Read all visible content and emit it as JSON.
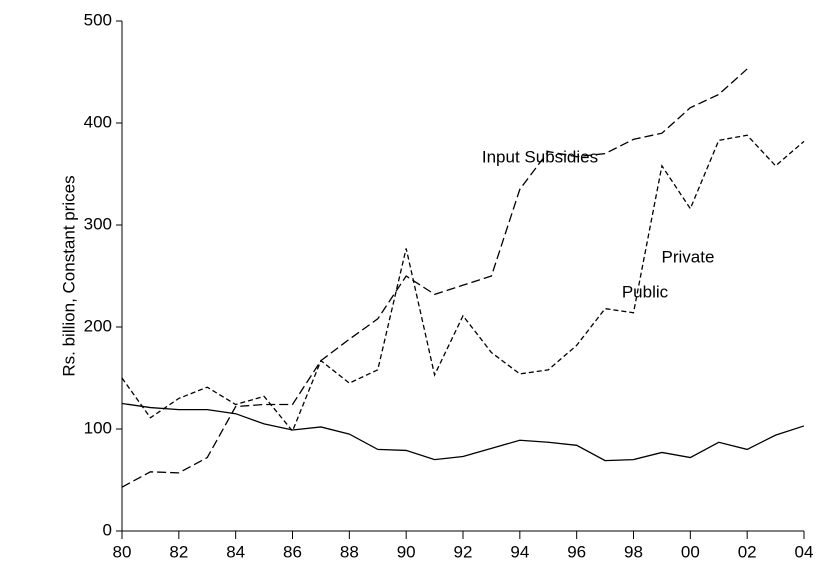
{
  "chart_data": {
    "type": "line",
    "y_label": "Rs. billion, Constant prices",
    "x": [
      1980,
      1981,
      1982,
      1983,
      1984,
      1985,
      1986,
      1987,
      1988,
      1989,
      1990,
      1991,
      1992,
      1993,
      1994,
      1995,
      1996,
      1997,
      1998,
      1999,
      2000,
      2001,
      2002,
      2003,
      2004
    ],
    "series": [
      {
        "name": "Input Subsidies",
        "color": "#000000",
        "dash": "long-dash",
        "values": [
          43,
          58,
          57,
          72,
          122,
          124,
          124,
          167,
          188,
          208,
          250,
          232,
          241,
          250,
          335,
          372,
          367,
          370,
          384,
          390,
          415,
          428,
          453,
          null,
          null
        ]
      },
      {
        "name": "Private",
        "color": "#000000",
        "dash": "short-dash",
        "values": [
          150,
          111,
          130,
          141,
          124,
          132,
          98,
          167,
          145,
          158,
          277,
          153,
          211,
          175,
          154,
          158,
          182,
          218,
          214,
          358,
          316,
          383,
          388,
          358,
          382
        ]
      },
      {
        "name": "Public",
        "color": "#000000",
        "dash": "solid",
        "values": [
          125,
          121,
          119,
          119,
          115,
          105,
          99,
          102,
          95,
          80,
          79,
          70,
          73,
          81,
          89,
          87,
          84,
          69,
          70,
          77,
          72,
          87,
          80,
          94,
          103
        ]
      }
    ],
    "xlim": [
      1980,
      2004
    ],
    "xticks": [
      {
        "value": 1980,
        "label": "80"
      },
      {
        "value": 1982,
        "label": "82"
      },
      {
        "value": 1984,
        "label": "84"
      },
      {
        "value": 1986,
        "label": "86"
      },
      {
        "value": 1988,
        "label": "88"
      },
      {
        "value": 1990,
        "label": "90"
      },
      {
        "value": 1992,
        "label": "92"
      },
      {
        "value": 1994,
        "label": "94"
      },
      {
        "value": 1996,
        "label": "96"
      },
      {
        "value": 1998,
        "label": "98"
      },
      {
        "value": 2000,
        "label": "00"
      },
      {
        "value": 2002,
        "label": "02"
      },
      {
        "value": 2004,
        "label": "04"
      }
    ],
    "ylim": [
      0,
      500
    ],
    "yticks": [
      0,
      100,
      200,
      300,
      400,
      500
    ],
    "grid": false
  }
}
